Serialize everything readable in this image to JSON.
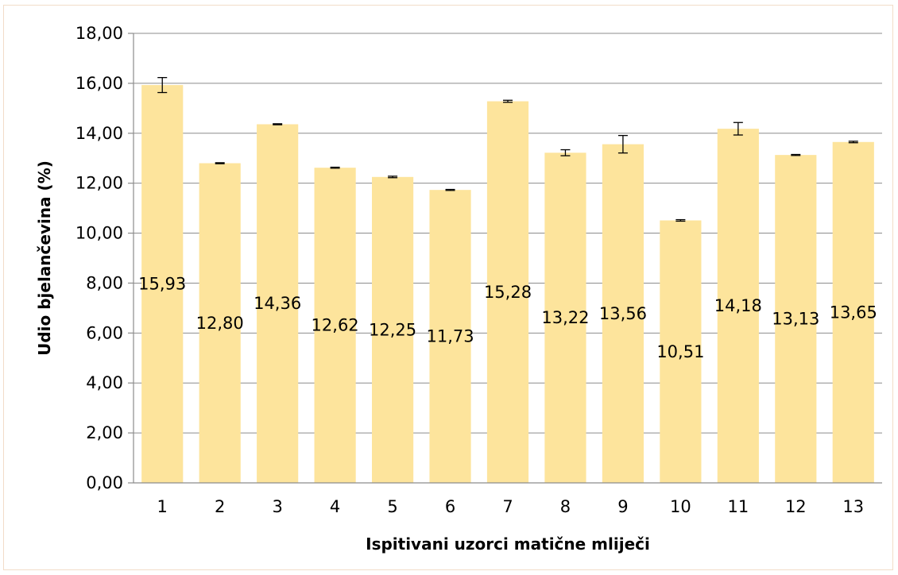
{
  "chart_data": {
    "type": "bar",
    "title": "",
    "xlabel": "Ispitivani uzorci matične mliječi",
    "ylabel": "Udio bjelančevina (%)",
    "ylim": [
      0,
      18
    ],
    "y_ticks": [
      "0,00",
      "2,00",
      "4,00",
      "6,00",
      "8,00",
      "10,00",
      "12,00",
      "14,00",
      "16,00",
      "18,00"
    ],
    "grid": true,
    "legend": "none",
    "bar_color": "#fde49c",
    "categories": [
      "1",
      "2",
      "3",
      "4",
      "5",
      "6",
      "7",
      "8",
      "9",
      "10",
      "11",
      "12",
      "13"
    ],
    "values": [
      15.93,
      12.8,
      14.36,
      12.62,
      12.25,
      11.73,
      15.28,
      13.22,
      13.56,
      10.51,
      14.18,
      13.13,
      13.65
    ],
    "error": [
      0.3,
      0.02,
      0.02,
      0.02,
      0.03,
      0.02,
      0.04,
      0.12,
      0.35,
      0.03,
      0.25,
      0.02,
      0.03
    ],
    "data_labels": [
      "15,93",
      "12,80",
      "14,36",
      "12,62",
      "12,25",
      "11,73",
      "15,28",
      "13,22",
      "13,56",
      "10,51",
      "14,18",
      "13,13",
      "13,65"
    ],
    "data_label_position": "centered"
  }
}
